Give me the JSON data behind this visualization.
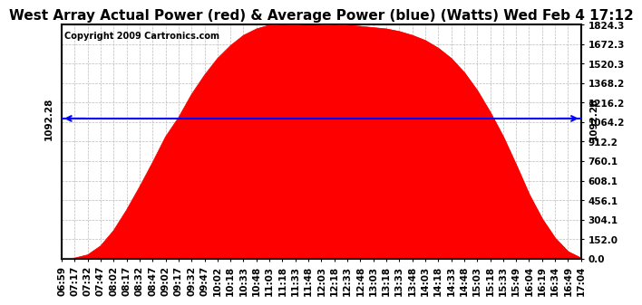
{
  "title": "West Array Actual Power (red) & Average Power (blue) (Watts) Wed Feb 4 17:12",
  "copyright": "Copyright 2009 Cartronics.com",
  "avg_power": 1092.28,
  "y_max": 1824.3,
  "y_min": 0.0,
  "y_ticks": [
    0.0,
    152.0,
    304.1,
    456.1,
    608.1,
    760.1,
    912.2,
    1064.2,
    1216.2,
    1368.2,
    1520.3,
    1672.3,
    1824.3
  ],
  "x_labels": [
    "06:59",
    "07:17",
    "07:32",
    "07:47",
    "08:02",
    "08:17",
    "08:32",
    "08:47",
    "09:02",
    "09:17",
    "09:32",
    "09:47",
    "10:02",
    "10:18",
    "10:33",
    "10:48",
    "11:03",
    "11:18",
    "11:33",
    "11:48",
    "12:03",
    "12:18",
    "12:33",
    "12:48",
    "13:03",
    "13:18",
    "13:33",
    "13:48",
    "14:03",
    "14:18",
    "14:33",
    "14:48",
    "15:03",
    "15:18",
    "15:33",
    "15:49",
    "16:04",
    "16:19",
    "16:34",
    "16:49",
    "17:04"
  ],
  "power_values": [
    0,
    5,
    30,
    100,
    220,
    380,
    560,
    750,
    950,
    1100,
    1280,
    1430,
    1560,
    1660,
    1740,
    1790,
    1820,
    1824,
    1822,
    1815,
    1820,
    1824,
    1820,
    1810,
    1800,
    1790,
    1770,
    1740,
    1700,
    1640,
    1560,
    1450,
    1310,
    1140,
    950,
    730,
    500,
    310,
    160,
    55,
    5
  ],
  "fill_color": "#FF0000",
  "line_color": "#0000FF",
  "bg_color": "#FFFFFF",
  "grid_color": "#BBBBBB",
  "title_fontsize": 11,
  "axis_fontsize": 7.5,
  "copyright_fontsize": 7
}
